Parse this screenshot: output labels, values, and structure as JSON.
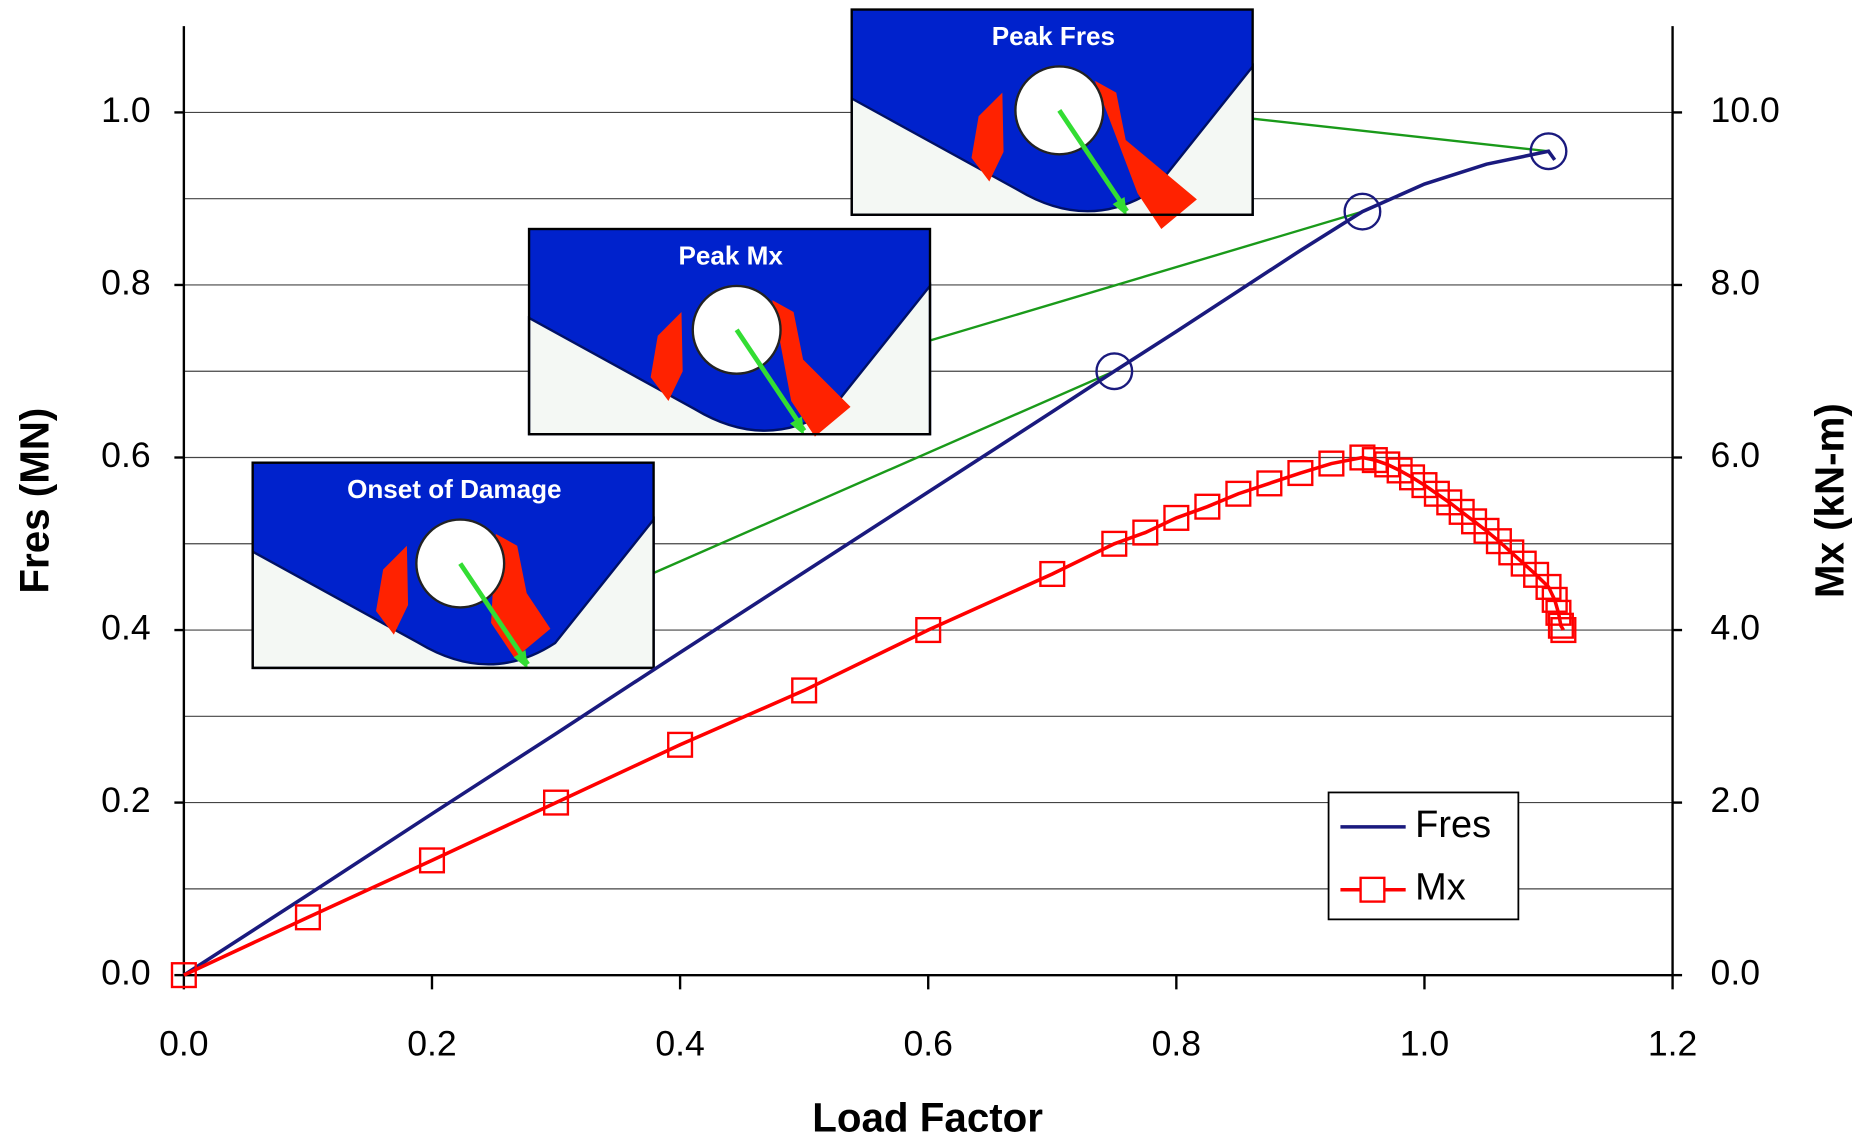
{
  "chart_data": {
    "type": "line",
    "xlabel": "Load Factor",
    "ylabel": "Fres (MN)",
    "y2label": "Mx (kN-m)",
    "xlim": [
      0,
      1.2
    ],
    "ylim": [
      0,
      1.1
    ],
    "y2lim": [
      0,
      11
    ],
    "xticks": [
      {
        "value": 0,
        "label": "0.0"
      },
      0.2,
      0.4,
      0.6,
      0.8,
      {
        "value": 1,
        "label": "1.0"
      },
      1.2
    ],
    "yticks": [
      {
        "value": 0,
        "label": "0.0"
      },
      0.2,
      0.4,
      0.6,
      0.8,
      {
        "value": 1,
        "label": "1.0"
      }
    ],
    "yminorticks": [
      0.1,
      0.3,
      0.5,
      0.7,
      0.9
    ],
    "y2ticks": [
      {
        "value": 0,
        "label": "0.0"
      },
      {
        "value": 2,
        "label": "2.0"
      },
      {
        "value": 4,
        "label": "4.0"
      },
      {
        "value": 6,
        "label": "6.0"
      },
      {
        "value": 8,
        "label": "8.0"
      },
      {
        "value": 10,
        "label": "10.0"
      }
    ],
    "grid": true,
    "legend": "lower right",
    "series": [
      {
        "name": "Fres",
        "color": "#1a1a7e",
        "marker": "none",
        "x": [
          0,
          0.1,
          0.2,
          0.3,
          0.4,
          0.5,
          0.6,
          0.7,
          0.75,
          0.8,
          0.85,
          0.9,
          0.95,
          1.0,
          1.05,
          1.1,
          1.105
        ],
        "values": [
          0,
          0.093,
          0.187,
          0.28,
          0.374,
          0.467,
          0.56,
          0.653,
          0.7,
          0.746,
          0.793,
          0.84,
          0.885,
          0.917,
          0.94,
          0.955,
          0.945
        ]
      },
      {
        "name": "Mx",
        "color": "#ff0000",
        "marker": "square",
        "axis": "y2",
        "x": [
          0,
          0.1,
          0.2,
          0.3,
          0.4,
          0.5,
          0.6,
          0.7,
          0.75,
          0.775,
          0.8,
          0.825,
          0.85,
          0.875,
          0.9,
          0.925,
          0.95,
          0.96,
          0.97,
          0.98,
          0.99,
          1.0,
          1.01,
          1.02,
          1.03,
          1.04,
          1.05,
          1.06,
          1.07,
          1.08,
          1.09,
          1.1,
          1.105,
          1.108,
          1.11,
          1.112
        ],
        "values": [
          0,
          0.67,
          1.33,
          2.0,
          2.67,
          3.3,
          4.0,
          4.65,
          5.0,
          5.13,
          5.3,
          5.43,
          5.58,
          5.7,
          5.82,
          5.93,
          6.0,
          5.97,
          5.92,
          5.85,
          5.77,
          5.68,
          5.58,
          5.48,
          5.37,
          5.26,
          5.15,
          5.03,
          4.9,
          4.77,
          4.64,
          4.5,
          4.35,
          4.2,
          4.05,
          4.0
        ]
      }
    ],
    "annotations": [
      {
        "text": "Onset of Damage",
        "x": 0.75,
        "y": 0.7
      },
      {
        "text": "Peak Mx",
        "x": 0.95,
        "y": 0.885
      },
      {
        "text": "Peak Fres",
        "x": 1.1,
        "y": 0.955
      }
    ]
  }
}
